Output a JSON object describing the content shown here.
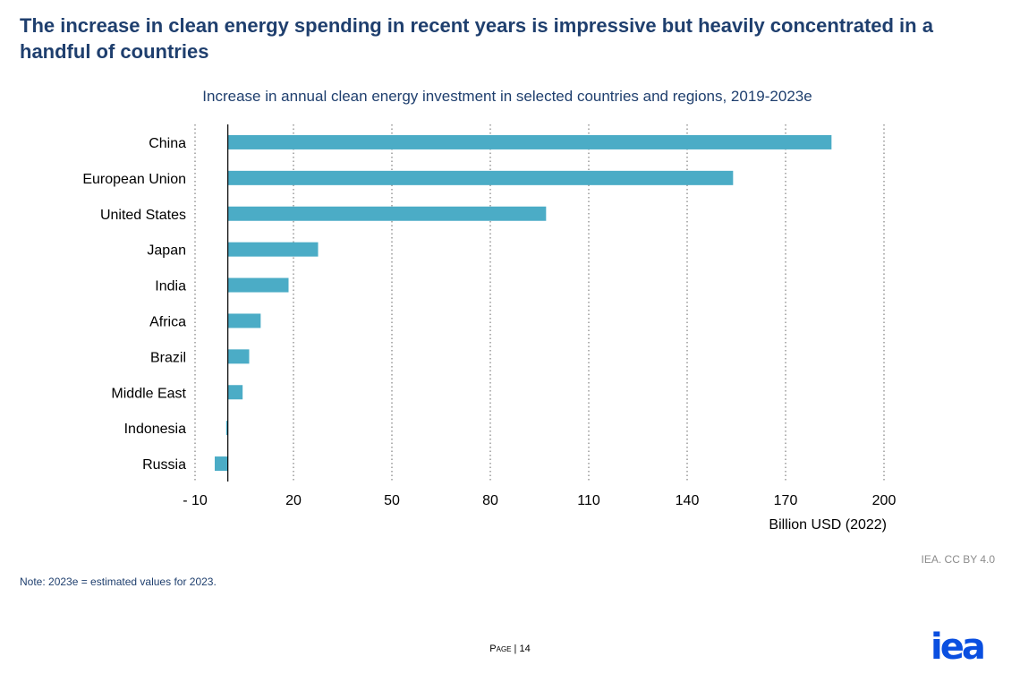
{
  "slide": {
    "title": "The increase in clean energy spending in recent years is impressive but heavily concentrated in a handful of countries",
    "note": "Note:  2023e = estimated values for 2023.",
    "credit": "IEA. CC BY 4.0",
    "page_word": "Page",
    "page_sep": " | ",
    "page_number": "14",
    "logo_text": "iea",
    "logo_color": "#0a4fe0"
  },
  "chart_data": {
    "type": "bar",
    "orientation": "horizontal",
    "title": "Increase in annual clean energy investment in selected countries and regions, 2019-2023e",
    "xlabel": "Billion USD (2022)",
    "ylabel": "",
    "xlim": [
      -10,
      200
    ],
    "xticks": [
      -10,
      20,
      50,
      80,
      110,
      140,
      170,
      200
    ],
    "xtick_labels": [
      "- 10",
      "20",
      "50",
      "80",
      "110",
      "140",
      "170",
      "200"
    ],
    "grid": "vertical dotted",
    "bar_color": "#4bacc6",
    "categories": [
      "China",
      "European Union",
      "United States",
      "Japan",
      "India",
      "Africa",
      "Brazil",
      "Middle East",
      "Indonesia",
      "Russia"
    ],
    "values": [
      184,
      154,
      97,
      27.5,
      18.5,
      10,
      6.5,
      4.5,
      -0.5,
      -4
    ]
  }
}
